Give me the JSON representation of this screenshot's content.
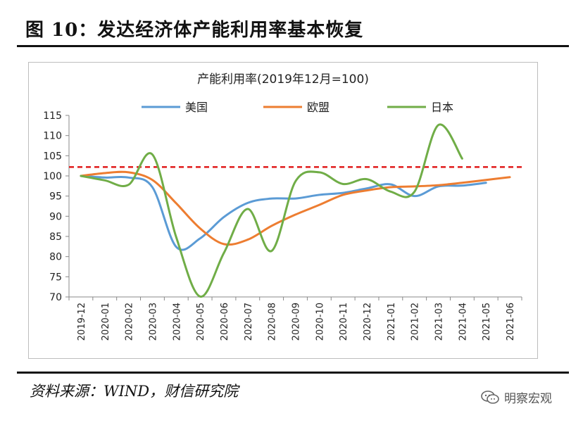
{
  "figure_title": "图 10：发达经济体产能利用率基本恢复",
  "source": "资料来源：WIND，财信研究院",
  "watermark": "明察宏观",
  "chart_data": {
    "type": "line",
    "title": "产能利用率(2019年12月=100)",
    "categories": [
      "2019-12",
      "2020-01",
      "2020-02",
      "2020-03",
      "2020-04",
      "2020-05",
      "2020-06",
      "2020-07",
      "2020-08",
      "2020-09",
      "2020-10",
      "2020-11",
      "2020-12",
      "2021-01",
      "2021-02",
      "2021-03",
      "2021-04",
      "2021-05",
      "2021-06"
    ],
    "ylim": [
      70,
      115
    ],
    "yticks": [
      70,
      75,
      80,
      85,
      90,
      95,
      100,
      105,
      110,
      115
    ],
    "reference_line": {
      "value": 102.2,
      "color": "#e01b1b",
      "style": "dashed"
    },
    "legend_position": "top",
    "series": [
      {
        "name": "美国",
        "color": "#5b9bd5",
        "values": [
          100,
          99.6,
          99.6,
          97.2,
          82.4,
          84.5,
          89.8,
          93.3,
          94.4,
          94.4,
          95.3,
          95.8,
          96.9,
          97.9,
          95.0,
          97.4,
          97.6,
          98.3,
          null
        ]
      },
      {
        "name": "欧盟",
        "color": "#ed7d31",
        "values": [
          100,
          100.7,
          100.9,
          99.0,
          93.2,
          87.0,
          83.1,
          84.2,
          87.6,
          90.4,
          92.8,
          95.3,
          96.4,
          97.2,
          97.4,
          97.7,
          98.3,
          99.0,
          99.7
        ]
      },
      {
        "name": "日本",
        "color": "#70ad47",
        "values": [
          100,
          98.9,
          97.8,
          105.3,
          84.8,
          70.1,
          80.9,
          91.8,
          81.4,
          98.6,
          100.9,
          98.0,
          99.2,
          96.1,
          96.1,
          112.6,
          104.3,
          null,
          null
        ]
      }
    ]
  }
}
